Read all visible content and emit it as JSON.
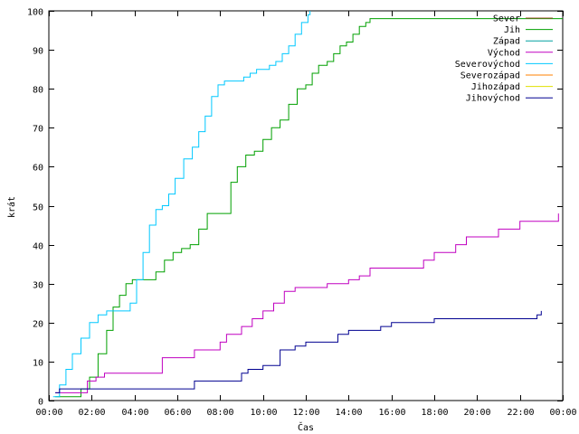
{
  "chart_data": {
    "type": "line",
    "title": "",
    "xlabel": "Čas",
    "ylabel": "krát",
    "xlim": [
      0,
      24
    ],
    "ylim": [
      0,
      100
    ],
    "x_ticks": [
      {
        "value": 0,
        "label": "00:00"
      },
      {
        "value": 2,
        "label": "02:00"
      },
      {
        "value": 4,
        "label": "04:00"
      },
      {
        "value": 6,
        "label": "06:00"
      },
      {
        "value": 8,
        "label": "08:00"
      },
      {
        "value": 10,
        "label": "10:00"
      },
      {
        "value": 12,
        "label": "12:00"
      },
      {
        "value": 14,
        "label": "14:00"
      },
      {
        "value": 16,
        "label": "16:00"
      },
      {
        "value": 18,
        "label": "18:00"
      },
      {
        "value": 20,
        "label": "20:00"
      },
      {
        "value": 22,
        "label": "22:00"
      },
      {
        "value": 24,
        "label": "00:00"
      }
    ],
    "y_ticks": [
      0,
      10,
      20,
      30,
      40,
      50,
      60,
      70,
      80,
      90,
      100
    ],
    "grid": false,
    "legend_position": "top-right",
    "series": [
      {
        "name": "Sever",
        "color": "#a0522d",
        "x": [],
        "y": []
      },
      {
        "name": "Jih",
        "color": "#00a000",
        "x": [
          0.3,
          1.2,
          1.5,
          1.9,
          2.3,
          2.7,
          3.0,
          3.3,
          3.6,
          3.9,
          4.2,
          5.0,
          5.4,
          5.8,
          6.2,
          6.6,
          7.0,
          7.4,
          7.8,
          8.2,
          8.5,
          8.8,
          9.2,
          9.6,
          10.0,
          10.4,
          10.8,
          11.2,
          11.6,
          12.0,
          12.3,
          12.6,
          13.0,
          13.3,
          13.6,
          13.9,
          14.2,
          14.5,
          14.8,
          15.0,
          24
        ],
        "y": [
          1,
          1,
          3,
          6,
          12,
          18,
          24,
          27,
          30,
          31,
          31,
          33,
          36,
          38,
          39,
          40,
          44,
          48,
          48,
          48,
          56,
          60,
          63,
          64,
          67,
          70,
          72,
          76,
          80,
          81,
          84,
          86,
          87,
          89,
          91,
          92,
          94,
          96,
          97,
          98,
          98
        ]
      },
      {
        "name": "Západ",
        "color": "#00a0a0",
        "x": [],
        "y": []
      },
      {
        "name": "Východ",
        "color": "#c000c0",
        "x": [
          0.3,
          1.5,
          1.8,
          2.2,
          2.6,
          3.0,
          4.0,
          5.0,
          5.3,
          6.0,
          6.8,
          7.2,
          8.0,
          8.3,
          9.0,
          9.5,
          10.0,
          10.5,
          11.0,
          11.5,
          12.0,
          13.0,
          14.0,
          14.5,
          15.0,
          16.0,
          17.0,
          17.5,
          18.0,
          19.0,
          19.5,
          20.0,
          21.0,
          22.0,
          23.0,
          23.8
        ],
        "y": [
          2,
          2,
          5,
          6,
          7,
          7,
          7,
          7,
          11,
          11,
          13,
          13,
          15,
          17,
          19,
          21,
          23,
          25,
          28,
          29,
          29,
          30,
          31,
          32,
          34,
          34,
          34,
          36,
          38,
          40,
          42,
          42,
          44,
          46,
          46,
          48
        ]
      },
      {
        "name": "Severovýchod",
        "color": "#00c8ff",
        "x": [
          0.2,
          0.5,
          0.8,
          1.1,
          1.5,
          1.9,
          2.3,
          2.7,
          3.1,
          3.5,
          3.8,
          4.1,
          4.4,
          4.7,
          5.0,
          5.3,
          5.6,
          5.9,
          6.3,
          6.7,
          7.0,
          7.3,
          7.6,
          7.9,
          8.2,
          8.5,
          8.8,
          9.1,
          9.4,
          9.7,
          10.0,
          10.3,
          10.6,
          10.9,
          11.2,
          11.5,
          11.8,
          12.1,
          12.2
        ],
        "y": [
          1,
          4,
          8,
          12,
          16,
          20,
          22,
          23,
          23,
          23,
          25,
          31,
          38,
          45,
          49,
          50,
          53,
          57,
          62,
          65,
          69,
          73,
          78,
          81,
          82,
          82,
          82,
          83,
          84,
          85,
          85,
          86,
          87,
          89,
          91,
          94,
          97,
          99,
          100
        ]
      },
      {
        "name": "Severozápad",
        "color": "#ff8000",
        "x": [],
        "y": []
      },
      {
        "name": "Jihozápad",
        "color": "#e0e000",
        "x": [],
        "y": []
      },
      {
        "name": "Jihovýchod",
        "color": "#000090",
        "x": [
          0.3,
          0.5,
          1.0,
          2.0,
          3.0,
          4.0,
          5.0,
          6.5,
          6.8,
          7.5,
          8.5,
          9.0,
          9.3,
          9.6,
          10.0,
          10.8,
          11.5,
          12.0,
          12.5,
          13.5,
          14.0,
          15.0,
          15.5,
          16.0,
          17.5,
          18.0,
          19.0,
          20.0,
          21.0,
          22.0,
          22.8,
          23.0
        ],
        "y": [
          2,
          3,
          3,
          3,
          3,
          3,
          3,
          3,
          5,
          5,
          5,
          7,
          8,
          8,
          9,
          13,
          14,
          15,
          15,
          17,
          18,
          18,
          19,
          20,
          20,
          21,
          21,
          21,
          21,
          21,
          22,
          23
        ]
      }
    ]
  }
}
